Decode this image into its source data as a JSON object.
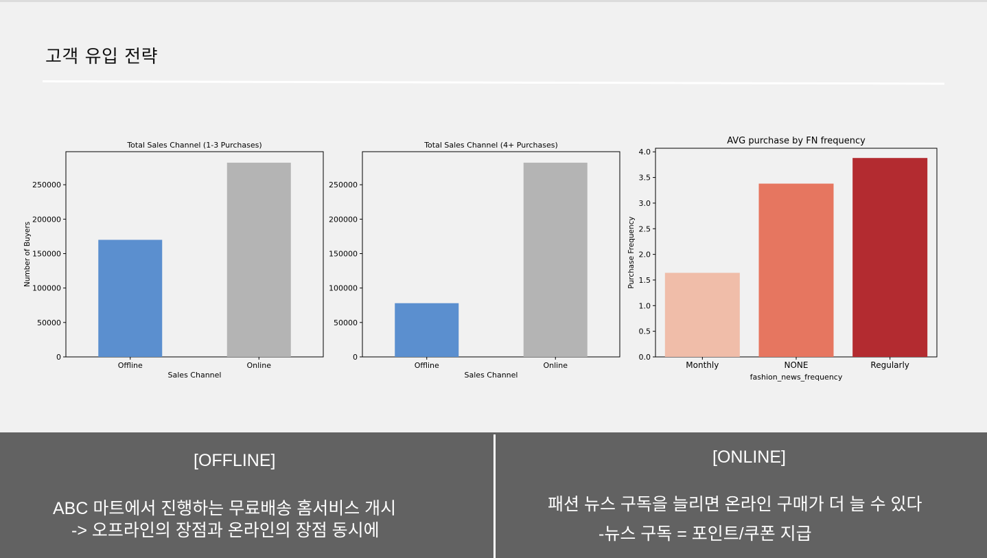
{
  "slide": {
    "title": "고객 유입 전략"
  },
  "chart_data": [
    {
      "type": "bar",
      "title": "Total Sales Channel (1-3 Purchases)",
      "categories": [
        "Offline",
        "Online"
      ],
      "values": [
        170000,
        282000
      ],
      "colors": [
        "#5b8fcf",
        "#b4b4b4"
      ],
      "xlabel": "Sales Channel",
      "ylabel": "Number of Buyers",
      "ylim": [
        0,
        298000
      ],
      "yticks": [
        "0",
        "50000",
        "100000",
        "150000",
        "200000",
        "250000"
      ]
    },
    {
      "type": "bar",
      "title": "Total Sales Channel (4+ Purchases)",
      "categories": [
        "Offline",
        "Online"
      ],
      "values": [
        78000,
        282000
      ],
      "colors": [
        "#5b8fcf",
        "#b4b4b4"
      ],
      "xlabel": "Sales Channel",
      "ylabel": "",
      "ylim": [
        0,
        298000
      ],
      "yticks": [
        "0",
        "50000",
        "100000",
        "150000",
        "200000",
        "250000"
      ]
    },
    {
      "type": "bar",
      "title": "AVG purchase by FN frequency",
      "categories": [
        "Monthly",
        "NONE",
        "Regularly"
      ],
      "values": [
        1.64,
        3.38,
        3.88
      ],
      "colors": [
        "#f0bda9",
        "#e67660",
        "#b32b30"
      ],
      "xlabel": "fashion_news_frequency",
      "ylabel": "Purchase Frequency",
      "ylim": [
        0,
        4.07
      ],
      "yticks": [
        "0.0",
        "0.5",
        "1.0",
        "1.5",
        "2.0",
        "2.5",
        "3.0",
        "3.5",
        "4.0"
      ]
    }
  ],
  "offline_panel": {
    "heading": "[OFFLINE]",
    "line1": "ABC 마트에서 진행하는 무료배송 홈서비스 개시",
    "line2": "-> 오프라인의 장점과 온라인의 장점 동시에"
  },
  "online_panel": {
    "heading": "[ONLINE]",
    "line1": "패션 뉴스 구독을 늘리면 온라인 구매가 더 늘 수 있다",
    "line2": "-뉴스 구독 = 포인트/쿠폰 지급"
  }
}
